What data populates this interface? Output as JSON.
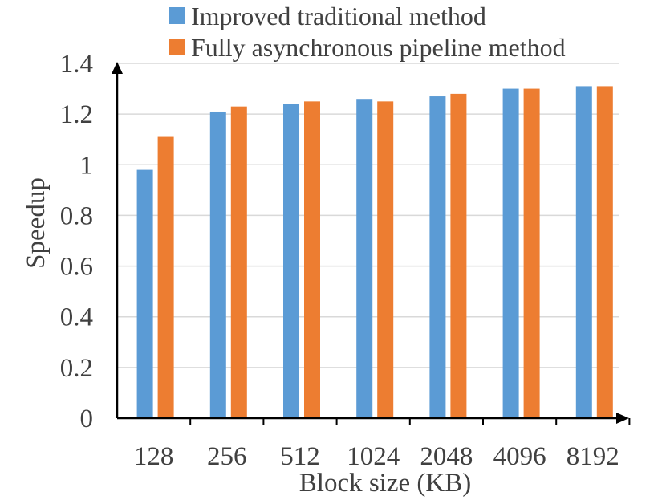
{
  "chart_data": {
    "type": "bar",
    "title": "",
    "xlabel": "Block size (KB)",
    "ylabel": "Speedup",
    "categories": [
      "128",
      "256",
      "512",
      "1024",
      "2048",
      "4096",
      "8192"
    ],
    "series": [
      {
        "name": "Improved traditional method",
        "color": "#5b9bd5",
        "values": [
          0.98,
          1.21,
          1.24,
          1.26,
          1.27,
          1.3,
          1.31
        ]
      },
      {
        "name": "Fully asynchronous pipeline method",
        "color": "#ed7d31",
        "values": [
          1.11,
          1.23,
          1.25,
          1.25,
          1.28,
          1.3,
          1.31
        ]
      }
    ],
    "ylim": [
      0,
      1.4
    ],
    "yticks": [
      0,
      0.2,
      0.4,
      0.6,
      0.8,
      1,
      1.2,
      1.4
    ],
    "ytick_labels": [
      "0",
      "0.2",
      "0.4",
      "0.6",
      "0.8",
      "1",
      "1.2",
      "1.4"
    ],
    "grid": true,
    "legend_position": "top"
  }
}
